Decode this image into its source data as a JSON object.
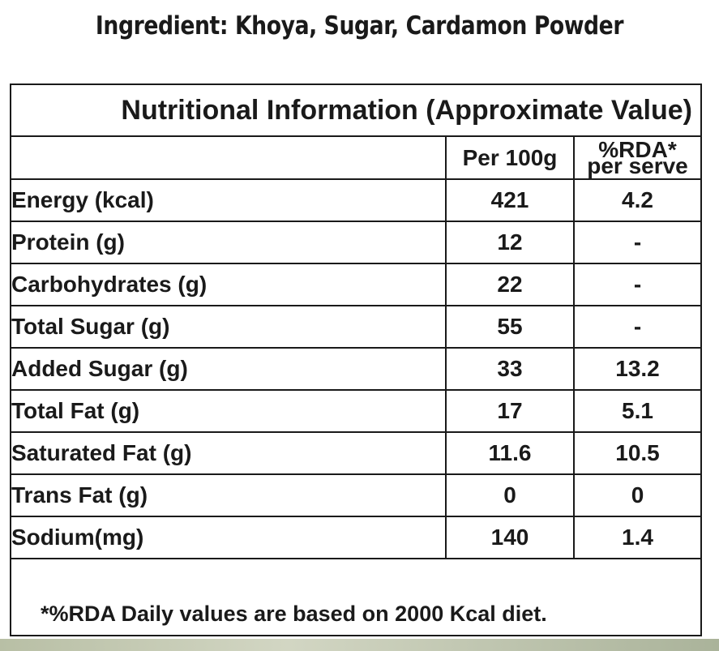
{
  "ingredients_line": "Ingredient: Khoya, Sugar, Cardamon Powder",
  "panel": {
    "title": "Nutritional Information (Approximate Value)",
    "columns": {
      "nutrient": "",
      "per100g": "Per 100g",
      "rda_line1": "%RDA*",
      "rda_line2": "per serve"
    },
    "rows": [
      {
        "nutrient": "Energy (kcal)",
        "per100g": "421",
        "rda": "4.2"
      },
      {
        "nutrient": "Protein (g)",
        "per100g": "12",
        "rda": "-"
      },
      {
        "nutrient": "Carbohydrates (g)",
        "per100g": "22",
        "rda": "-"
      },
      {
        "nutrient": "Total Sugar (g)",
        "per100g": "55",
        "rda": "-"
      },
      {
        "nutrient": "Added Sugar (g)",
        "per100g": "33",
        "rda": "13.2"
      },
      {
        "nutrient": "Total Fat (g)",
        "per100g": "17",
        "rda": "5.1"
      },
      {
        "nutrient": "Saturated Fat (g)",
        "per100g": "11.6",
        "rda": "10.5"
      },
      {
        "nutrient": "Trans Fat (g)",
        "per100g": "0",
        "rda": "0"
      },
      {
        "nutrient": "Sodium(mg)",
        "per100g": "140",
        "rda": "1.4"
      }
    ],
    "footnote": "*%RDA Daily values are based on 2000 Kcal diet."
  },
  "colors": {
    "ink": "#1a1a1a",
    "background": "#ffffff",
    "bottom_strip": "#c5cab4"
  }
}
